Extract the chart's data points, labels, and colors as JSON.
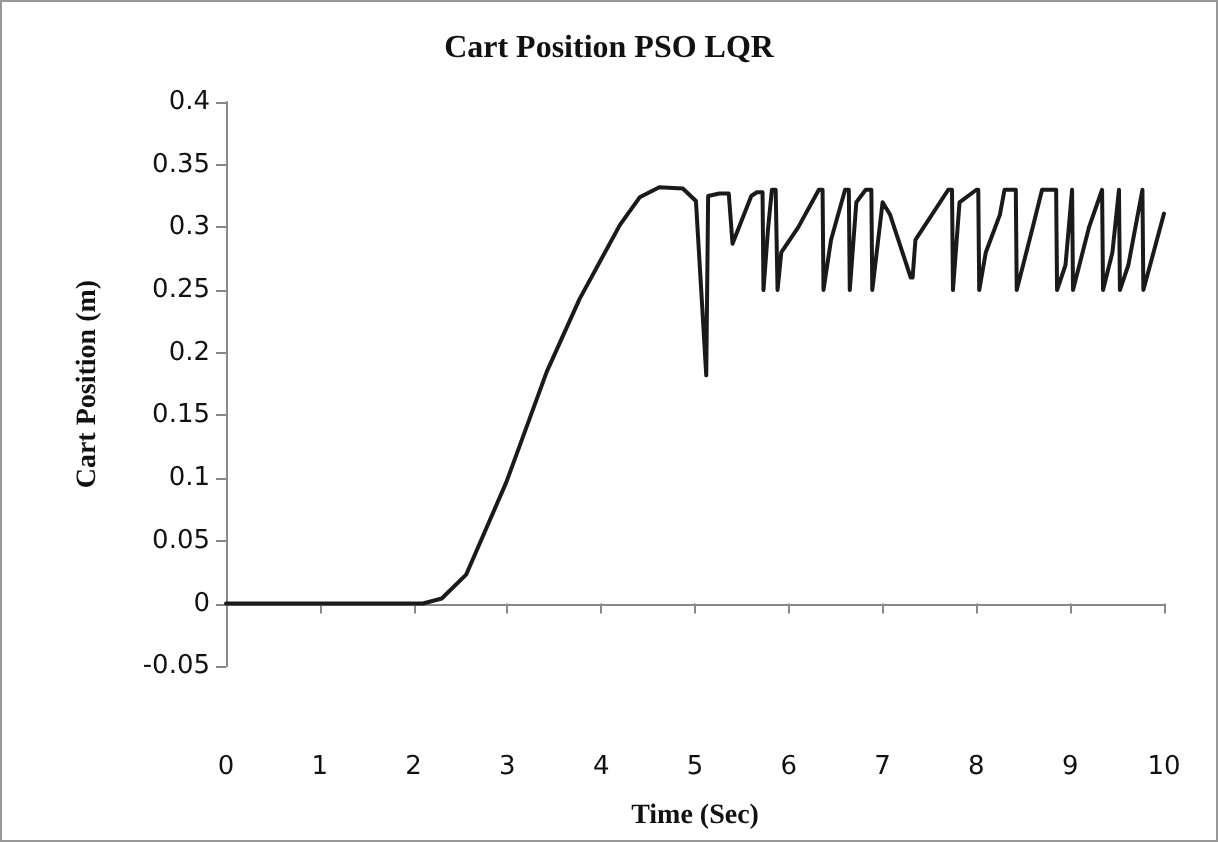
{
  "chart_data": {
    "type": "line",
    "title": "Cart Position PSO LQR",
    "xlabel": "Time (Sec)",
    "ylabel": "Cart Position (m)",
    "xlim": [
      0,
      10
    ],
    "xticks": [
      0,
      1,
      2,
      3,
      4,
      5,
      6,
      7,
      8,
      9,
      10
    ],
    "ylim": [
      -0.05,
      0.4
    ],
    "yticks": [
      -0.05,
      0,
      0.05,
      0.1,
      0.15,
      0.2,
      0.25,
      0.3,
      0.35,
      0.4
    ],
    "marker": "none",
    "line_style": "solid",
    "series": [
      {
        "color": "#1a1a1a",
        "x": [
          0,
          1,
          2,
          2.1,
          2.3,
          2.56,
          2.99,
          3.42,
          3.77,
          4.2,
          4.41,
          4.62,
          4.87,
          5.01,
          5.12,
          5.14,
          5.26,
          5.36,
          5.4,
          5.6,
          5.66,
          5.72,
          5.73,
          5.78,
          5.82,
          5.86,
          5.88,
          5.92,
          6.1,
          6.32,
          6.36,
          6.37,
          6.45,
          6.6,
          6.64,
          6.65,
          6.72,
          6.82,
          6.88,
          6.89,
          7.0,
          7.08,
          7.3,
          7.32,
          7.35,
          7.7,
          7.74,
          7.75,
          7.82,
          8.0,
          8.02,
          8.03,
          8.1,
          8.25,
          8.3,
          8.42,
          8.43,
          8.6,
          8.7,
          8.78,
          8.85,
          8.86,
          8.95,
          9.02,
          9.03,
          9.2,
          9.34,
          9.35,
          9.45,
          9.52,
          9.53,
          9.62,
          9.77,
          9.78,
          10.0
        ],
        "values": [
          0,
          0,
          0,
          0,
          0.004,
          0.023,
          0.097,
          0.185,
          0.243,
          0.302,
          0.324,
          0.332,
          0.331,
          0.321,
          0.182,
          0.325,
          0.327,
          0.327,
          0.287,
          0.325,
          0.328,
          0.328,
          0.25,
          0.3,
          0.33,
          0.33,
          0.25,
          0.28,
          0.3,
          0.33,
          0.33,
          0.25,
          0.29,
          0.33,
          0.33,
          0.25,
          0.32,
          0.33,
          0.33,
          0.25,
          0.32,
          0.31,
          0.26,
          0.26,
          0.29,
          0.33,
          0.33,
          0.25,
          0.32,
          0.33,
          0.33,
          0.25,
          0.28,
          0.31,
          0.33,
          0.33,
          0.25,
          0.3,
          0.33,
          0.33,
          0.33,
          0.25,
          0.27,
          0.33,
          0.25,
          0.3,
          0.33,
          0.25,
          0.28,
          0.33,
          0.25,
          0.27,
          0.33,
          0.25,
          0.311
        ]
      }
    ]
  }
}
